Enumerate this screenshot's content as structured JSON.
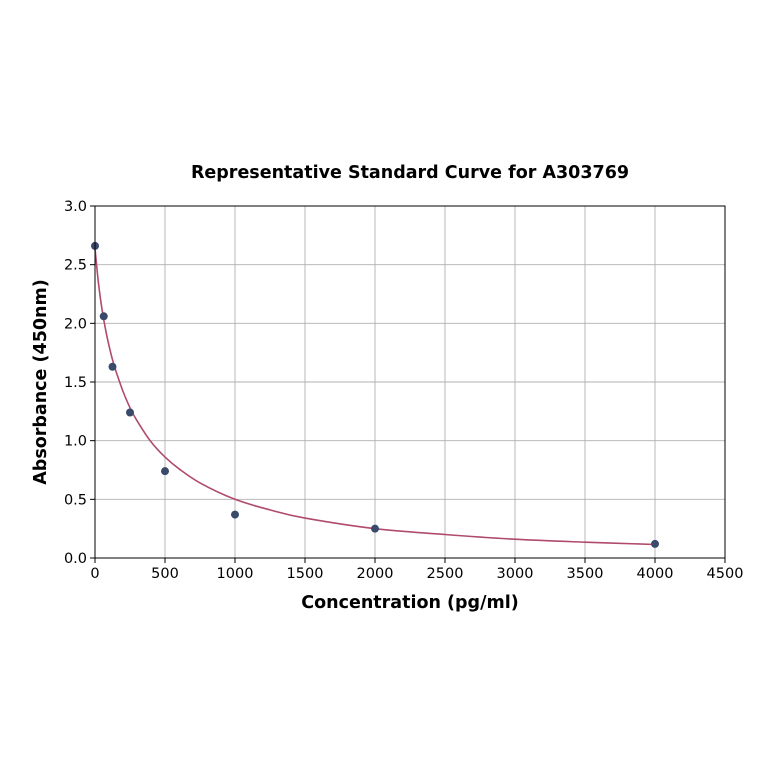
{
  "chart_data": {
    "type": "scatter",
    "title": "Representative Standard Curve for A303769",
    "xlabel": "Concentration (pg/ml)",
    "ylabel": "Absorbance (450nm)",
    "xlim": [
      0,
      4500
    ],
    "ylim": [
      0,
      3.0
    ],
    "x_ticks": [
      "0",
      "500",
      "1000",
      "1500",
      "2000",
      "2500",
      "3000",
      "3500",
      "4000",
      "4500"
    ],
    "y_ticks": [
      "0.0",
      "0.5",
      "1.0",
      "1.5",
      "2.0",
      "2.5",
      "3.0"
    ],
    "grid": true,
    "series": [
      {
        "x": [
          0,
          62.5,
          125,
          250,
          500,
          1000,
          2000,
          4000
        ],
        "y": [
          2.66,
          2.06,
          1.63,
          1.24,
          0.74,
          0.37,
          0.25,
          0.12
        ]
      }
    ],
    "fit_curve": {
      "x": [
        0,
        25,
        50,
        75,
        100,
        125,
        150,
        200,
        250,
        300,
        400,
        500,
        600,
        750,
        1000,
        1250,
        1500,
        2000,
        2500,
        3000,
        3500,
        4000
      ],
      "y": [
        2.64,
        2.34,
        2.12,
        1.95,
        1.81,
        1.69,
        1.59,
        1.42,
        1.28,
        1.17,
        0.99,
        0.86,
        0.76,
        0.64,
        0.5,
        0.41,
        0.34,
        0.25,
        0.2,
        0.16,
        0.135,
        0.115
      ]
    },
    "colors": {
      "marker": "#3a4a6b",
      "fit_line": "#b04a6e",
      "grid": "#b0b0b0"
    }
  }
}
